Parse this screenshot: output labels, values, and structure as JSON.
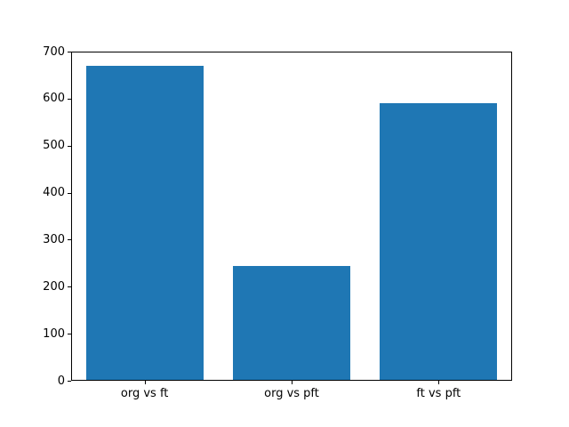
{
  "chart_data": {
    "type": "bar",
    "categories": [
      "org vs ft",
      "org vs pft",
      "ft vs pft"
    ],
    "values": [
      670,
      245,
      590
    ],
    "title": "",
    "xlabel": "",
    "ylabel": "",
    "ylim": [
      0,
      700
    ],
    "yticks": [
      0,
      100,
      200,
      300,
      400,
      500,
      600,
      700
    ],
    "bar_width_fraction": 0.8,
    "bar_color": "#1f77b4",
    "axis_color": "#000000",
    "background_color": "#ffffff",
    "grid": false,
    "legend": null
  }
}
